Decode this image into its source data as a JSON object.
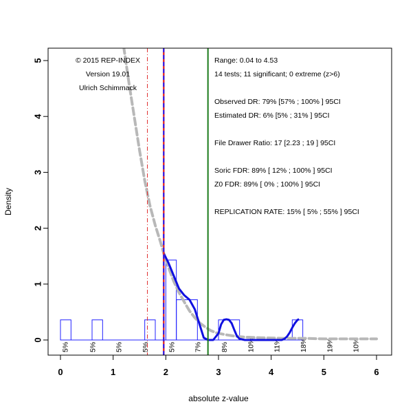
{
  "chart_data": {
    "type": "histogram",
    "xlabel": "absolute z-value",
    "ylabel": "Density",
    "xlim": [
      0,
      6
    ],
    "ylim": [
      0,
      5
    ],
    "x_ticks": [
      "0",
      "1",
      "2",
      "3",
      "4",
      "5",
      "6"
    ],
    "y_ticks": [
      "0",
      "1",
      "2",
      "3",
      "4",
      "5"
    ],
    "histogram_bins": [
      {
        "x0": 0.0,
        "x1": 0.2,
        "density": 0.36
      },
      {
        "x0": 0.6,
        "x1": 0.8,
        "density": 0.36
      },
      {
        "x0": 1.6,
        "x1": 1.8,
        "density": 0.36
      },
      {
        "x0": 2.0,
        "x1": 2.2,
        "density": 1.43
      },
      {
        "x0": 2.2,
        "x1": 2.6,
        "density": 0.72
      },
      {
        "x0": 3.0,
        "x1": 3.4,
        "density": 0.36
      },
      {
        "x0": 4.4,
        "x1": 4.6,
        "density": 0.36
      }
    ],
    "bin_labels": [
      {
        "x": 0.1,
        "text": "5%"
      },
      {
        "x": 0.62,
        "text": "5%"
      },
      {
        "x": 1.12,
        "text": "5%"
      },
      {
        "x": 1.62,
        "text": "5%"
      },
      {
        "x": 2.12,
        "text": "5%"
      },
      {
        "x": 2.62,
        "text": "7%"
      },
      {
        "x": 3.12,
        "text": "8%"
      },
      {
        "x": 3.62,
        "text": "10%"
      },
      {
        "x": 4.12,
        "text": "11%"
      },
      {
        "x": 4.62,
        "text": "18%"
      },
      {
        "x": 5.12,
        "text": "19%"
      },
      {
        "x": 5.62,
        "text": "10%"
      }
    ],
    "vertical_lines": [
      {
        "x": 1.65,
        "color": "#e03030",
        "style": "dashdot",
        "name": "one-tailed-criterion"
      },
      {
        "x": 1.96,
        "color": "#e03030",
        "style": "solid",
        "name": "significance-criterion"
      },
      {
        "x": 1.96,
        "color": "#2020ff",
        "style": "dashed",
        "name": "selection-line"
      },
      {
        "x": 2.8,
        "color": "#1a7a1a",
        "style": "solid",
        "name": "power-line"
      }
    ],
    "density_curve_blue": {
      "color": "#1010e0",
      "x": [
        1.96,
        2.05,
        2.15,
        2.25,
        2.35,
        2.45,
        2.55,
        2.65,
        2.72,
        2.8,
        2.9,
        3.0,
        3.05,
        3.1,
        3.15,
        3.2,
        3.25,
        3.3,
        3.35,
        3.4,
        3.5,
        3.6,
        3.7,
        3.8,
        3.9,
        4.0,
        4.1,
        4.2,
        4.25,
        4.3,
        4.35,
        4.4,
        4.45,
        4.5,
        4.53
      ],
      "y": [
        1.55,
        1.38,
        1.15,
        0.92,
        0.8,
        0.72,
        0.55,
        0.25,
        0.04,
        0.0,
        0.0,
        0.12,
        0.28,
        0.36,
        0.37,
        0.36,
        0.3,
        0.18,
        0.07,
        0.02,
        0.0,
        0.0,
        0.0,
        0.0,
        0.0,
        0.0,
        0.0,
        0.0,
        0.02,
        0.06,
        0.13,
        0.22,
        0.3,
        0.36,
        0.37
      ]
    },
    "model_curve_gray": {
      "color": "#b8b8b8",
      "x": [
        1.2,
        1.3,
        1.4,
        1.5,
        1.6,
        1.7,
        1.8,
        1.9,
        1.96,
        2.05,
        2.15,
        2.25,
        2.35,
        2.45,
        2.55,
        2.65,
        2.75,
        2.85,
        2.95,
        3.1,
        3.3,
        3.5,
        3.8,
        4.2,
        4.6,
        5.0,
        5.5,
        6.0
      ],
      "y": [
        5.25,
        4.6,
        4.0,
        3.4,
        2.85,
        2.4,
        2.05,
        1.75,
        1.55,
        1.3,
        1.05,
        0.85,
        0.68,
        0.52,
        0.4,
        0.3,
        0.23,
        0.17,
        0.13,
        0.1,
        0.07,
        0.05,
        0.04,
        0.03,
        0.03,
        0.02,
        0.02,
        0.02
      ]
    },
    "annotations_left": [
      "© 2015 REP-INDEX",
      "Version 19.01",
      "Ulrich Schimmack"
    ],
    "annotations_right": [
      "Range: 0.04 to 4.53",
      "14 tests; 11 significant; 0 extreme (z>6)",
      "Observed DR: 79% [57% ; 100% ] 95CI",
      "Estimated DR: 6% [5% ; 31% ] 95CI",
      "File Drawer Ratio: 17 [2.23 ; 19 ] 95CI",
      "Soric FDR: 89% [ 12% ; 100% ] 95CI",
      "Z0 FDR: 89% [ 0% ; 100% ] 95CI",
      "REPLICATION RATE: 15% [ 5% ; 55% ] 95CI"
    ]
  }
}
